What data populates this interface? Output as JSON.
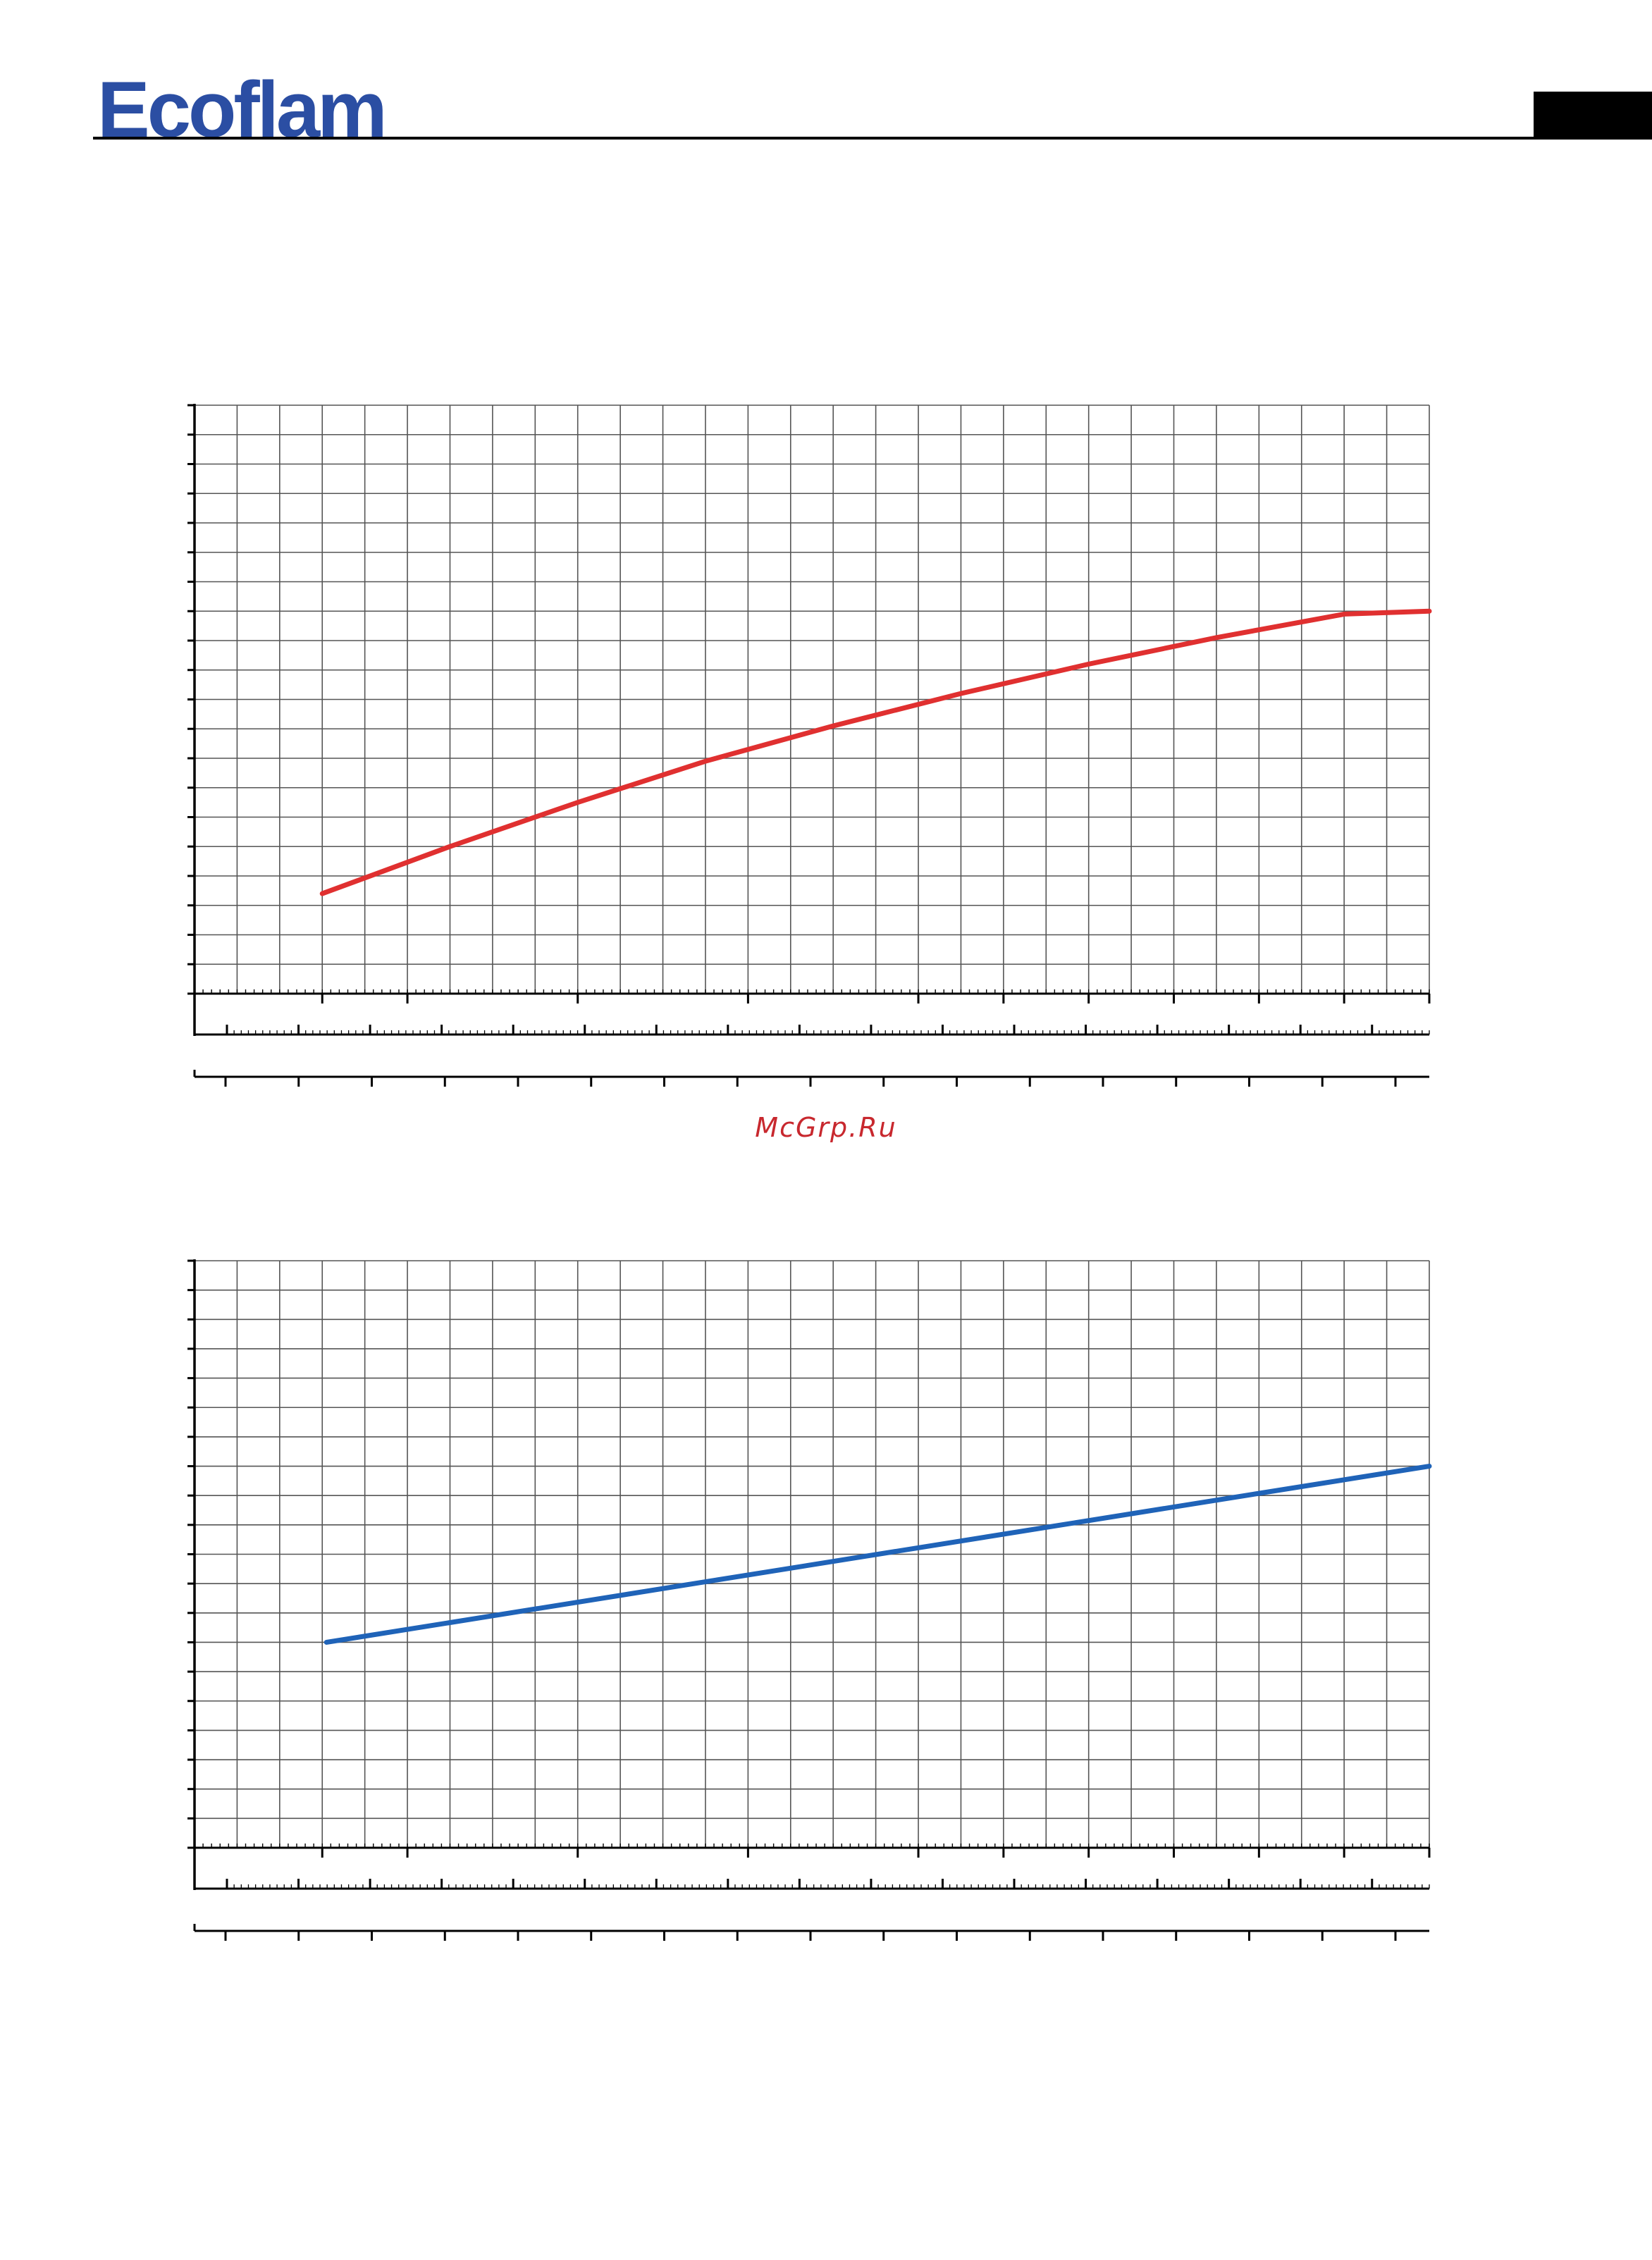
{
  "header": {
    "logo_text": "Ecoflam",
    "logo_color": "#2b4ea3"
  },
  "watermark": {
    "text": "McGrp.Ru",
    "color": "#c8282e"
  },
  "chart_data": [
    {
      "type": "line",
      "title": "",
      "xlabel": "",
      "ylabel": "",
      "xlim": [
        0,
        29
      ],
      "ylim": [
        0,
        20
      ],
      "grid": true,
      "series": [
        {
          "color": "#e03030",
          "x": [
            3,
            6,
            9,
            12,
            15,
            18,
            21,
            24,
            27,
            29
          ],
          "y": [
            3.4,
            5.0,
            6.5,
            8.0,
            9.3,
            10.6,
            11.7,
            12.7,
            13.6,
            13.0
          ]
        }
      ]
    },
    {
      "type": "line",
      "title": "",
      "xlabel": "",
      "ylabel": "",
      "xlim": [
        0,
        29
      ],
      "ylim": [
        0,
        20
      ],
      "grid": true,
      "series": [
        {
          "color": "#1f63b8",
          "x": [
            3.1,
            29
          ],
          "y": [
            7.0,
            13.0
          ]
        }
      ]
    }
  ]
}
